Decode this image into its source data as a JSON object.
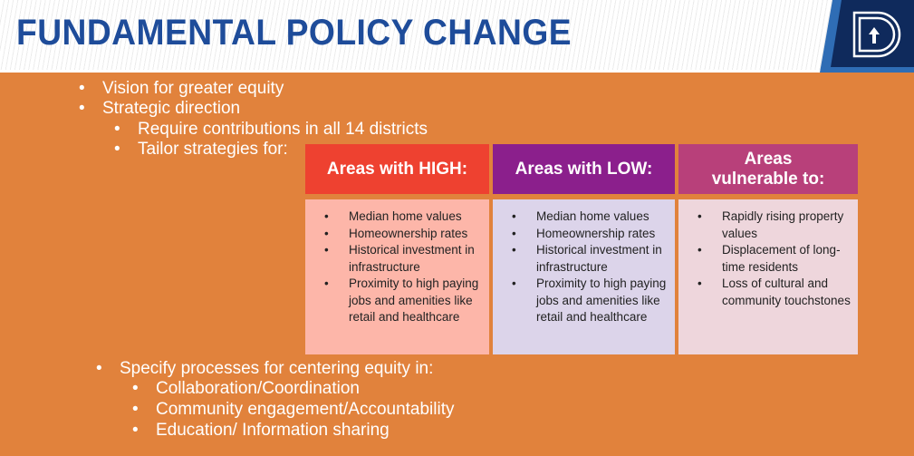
{
  "title": "FUNDAMENTAL POLICY CHANGE",
  "bullets": {
    "l1": [
      "Vision for greater equity",
      "Strategic direction"
    ],
    "l2": [
      "Require contributions in all 14 districts",
      "Tailor strategies for:"
    ],
    "l3": "Specify processes for centering equity in:",
    "l4": [
      "Collaboration/Coordination",
      "Community engagement/Accountability",
      "Education/ Information sharing"
    ]
  },
  "columns": [
    {
      "header": "Areas with HIGH:",
      "items": [
        "Median home values",
        "Homeownership rates",
        "Historical investment in infrastructure",
        "Proximity to high paying jobs and amenities like retail and healthcare"
      ]
    },
    {
      "header": "Areas with LOW:",
      "items": [
        "Median home values",
        "Homeownership rates",
        "Historical investment in infrastructure",
        "Proximity to high paying jobs and amenities like retail and healthcare"
      ]
    },
    {
      "header": "Areas vulnerable to:",
      "items": [
        "Rapidly rising property values",
        "Displacement of long-time residents",
        "Loss of cultural and community touchstones"
      ]
    }
  ],
  "colors": {
    "bg": "#E1823C",
    "title": "#1E4C9A",
    "high": "#EE4130",
    "low": "#8B1F8C",
    "vuln": "#B8407A"
  }
}
